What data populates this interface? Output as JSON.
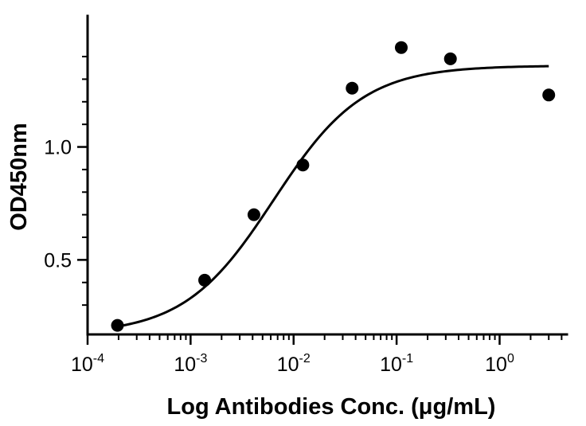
{
  "chart_data": {
    "type": "scatter",
    "title": "",
    "xlabel": "Log Antibodies Conc. (μg/mL)",
    "ylabel": "OD450nm",
    "x_scale": "log",
    "xlim": [
      0.0001,
      4.5
    ],
    "ylim": [
      0.17,
      1.58
    ],
    "grid": false,
    "x_ticks": [
      {
        "value": 0.0001,
        "base": "10",
        "exp": "-4"
      },
      {
        "value": 0.001,
        "base": "10",
        "exp": "-3"
      },
      {
        "value": 0.01,
        "base": "10",
        "exp": "-2"
      },
      {
        "value": 0.1,
        "base": "10",
        "exp": "-1"
      },
      {
        "value": 1,
        "base": "10",
        "exp": "0"
      }
    ],
    "y_major_ticks": [
      {
        "value": 0.5,
        "label": "0.5"
      },
      {
        "value": 1.0,
        "label": "1.0"
      }
    ],
    "y_minor_ticks": [
      0.3,
      0.4,
      0.6,
      0.7,
      0.8,
      0.9,
      1.1,
      1.2,
      1.3,
      1.4
    ],
    "series": [
      {
        "points": [
          {
            "x": 0.000195,
            "y": 0.21
          },
          {
            "x": 0.00137,
            "y": 0.41
          },
          {
            "x": 0.00412,
            "y": 0.7
          },
          {
            "x": 0.0123,
            "y": 0.92
          },
          {
            "x": 0.037,
            "y": 1.26
          },
          {
            "x": 0.111,
            "y": 1.44
          },
          {
            "x": 0.333,
            "y": 1.39
          },
          {
            "x": 3.0,
            "y": 1.23
          }
        ]
      }
    ],
    "fit": {
      "model": "4PL",
      "bottom": 0.17,
      "top": 1.36,
      "ec50": 0.0064,
      "hill": 1.0
    },
    "colors": {
      "points": "#000000",
      "curve": "#000000",
      "axes": "#000000"
    }
  }
}
